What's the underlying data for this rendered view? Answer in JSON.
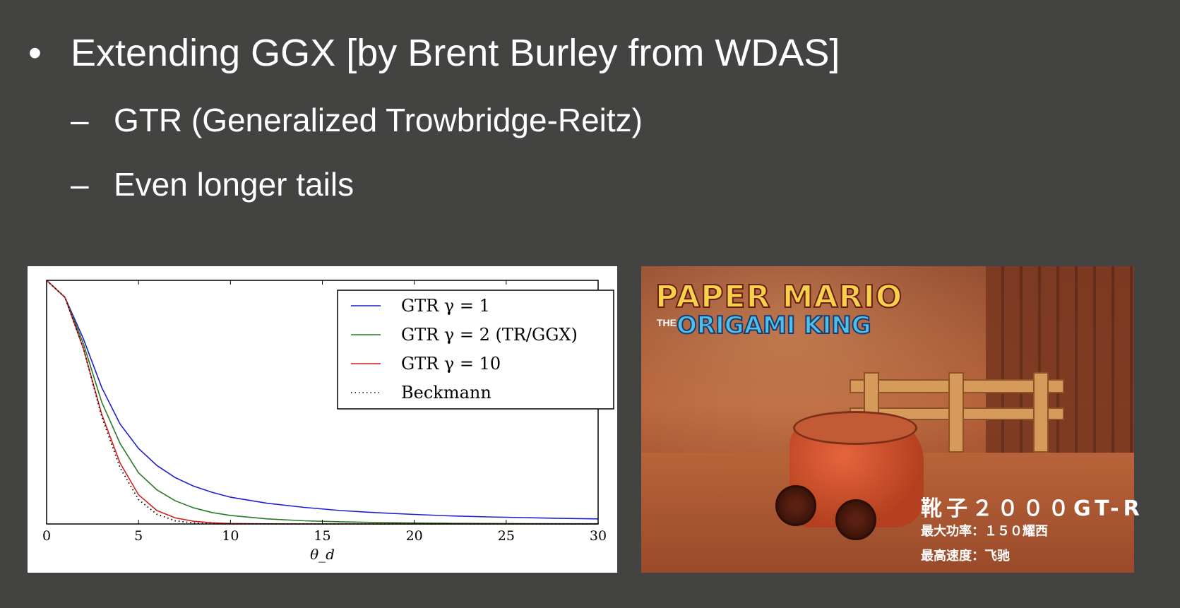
{
  "slide": {
    "bullet_symbol": "•",
    "title": "Extending GGX [by Brent Burley from WDAS]",
    "sub_dash": "–",
    "subpoints": [
      "GTR (Generalized Trowbridge-Reitz)",
      "Even longer tails"
    ]
  },
  "chart_data": {
    "type": "line",
    "title": "",
    "xlabel": "θ_d",
    "ylabel": "",
    "xlim": [
      0,
      30
    ],
    "ylim": [
      0,
      1
    ],
    "xticks": [
      0,
      5,
      10,
      15,
      20,
      25,
      30
    ],
    "grid": false,
    "legend_position": "top-right",
    "x": [
      0,
      1,
      2,
      3,
      4,
      5,
      6,
      7,
      8,
      9,
      10,
      12,
      14,
      16,
      18,
      20,
      22,
      24,
      26,
      28,
      30
    ],
    "series": [
      {
        "name": "GTR γ = 1",
        "color": "#1f1fd0",
        "style": "solid",
        "values": [
          1.0,
          0.93,
          0.76,
          0.56,
          0.41,
          0.31,
          0.24,
          0.19,
          0.155,
          0.13,
          0.11,
          0.085,
          0.068,
          0.055,
          0.046,
          0.039,
          0.033,
          0.029,
          0.026,
          0.023,
          0.021
        ]
      },
      {
        "name": "GTR γ = 2 (TR/GGX)",
        "color": "#2a7a2a",
        "style": "solid",
        "values": [
          1.0,
          0.93,
          0.74,
          0.5,
          0.33,
          0.21,
          0.14,
          0.095,
          0.066,
          0.047,
          0.035,
          0.021,
          0.013,
          0.009,
          0.006,
          0.004,
          0.003,
          0.002,
          0.0015,
          0.001,
          0.001
        ]
      },
      {
        "name": "GTR γ = 10",
        "color": "#d42020",
        "style": "solid",
        "values": [
          1.0,
          0.93,
          0.72,
          0.45,
          0.25,
          0.12,
          0.055,
          0.025,
          0.011,
          0.005,
          0.002,
          0.0005,
          0.0,
          0.0,
          0.0,
          0.0,
          0.0,
          0.0,
          0.0,
          0.0,
          0.0
        ]
      },
      {
        "name": "Beckmann",
        "color": "#000000",
        "style": "dotted",
        "values": [
          1.0,
          0.93,
          0.72,
          0.44,
          0.23,
          0.1,
          0.04,
          0.013,
          0.004,
          0.001,
          0.0,
          0.0,
          0.0,
          0.0,
          0.0,
          0.0,
          0.0,
          0.0,
          0.0,
          0.0,
          0.0
        ]
      }
    ]
  },
  "game_image": {
    "logo_line1": "PAPER MARIO",
    "logo_the": "THE",
    "logo_line2": "ORIGAMI KING",
    "caption1": "靴子２０００GT-R",
    "caption2": "最大功率：１５０耀西",
    "caption3": "最高速度：飞驰"
  }
}
